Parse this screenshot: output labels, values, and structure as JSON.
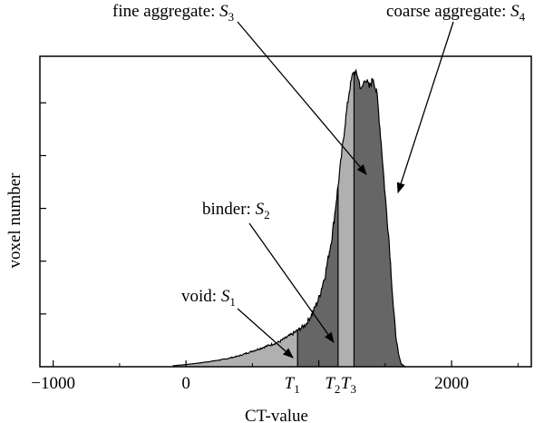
{
  "chart_data": {
    "type": "area",
    "xlabel": "CT-value",
    "ylabel": "voxel number",
    "xlim": [
      -1100,
      2600
    ],
    "ylim": [
      0,
      1.0
    ],
    "xticks": [
      -1000,
      0,
      1000,
      2000
    ],
    "xtick_labels": [
      "−1000",
      "0",
      "",
      "2000"
    ],
    "y_tick_count": 6,
    "y_tick_labels": false,
    "curve": {
      "x": [
        -100,
        0,
        100,
        200,
        300,
        400,
        500,
        600,
        700,
        800,
        900,
        950,
        1000,
        1050,
        1100,
        1150,
        1200,
        1230,
        1260,
        1290,
        1320,
        1350,
        1380,
        1410,
        1440,
        1470,
        1500,
        1530,
        1560,
        1580,
        1600,
        1620,
        1650
      ],
      "y": [
        0.003,
        0.007,
        0.012,
        0.018,
        0.025,
        0.035,
        0.05,
        0.065,
        0.08,
        0.105,
        0.135,
        0.17,
        0.22,
        0.3,
        0.42,
        0.6,
        0.79,
        0.89,
        0.95,
        0.94,
        0.89,
        0.93,
        0.9,
        0.93,
        0.87,
        0.72,
        0.55,
        0.4,
        0.2,
        0.1,
        0.04,
        0.01,
        0.0
      ]
    },
    "thresholds": [
      {
        "name": "T",
        "sub": "1",
        "x": 840
      },
      {
        "name": "T",
        "sub": "2",
        "x": 1145
      },
      {
        "name": "T",
        "sub": "3",
        "x": 1265
      }
    ],
    "regions": [
      {
        "name": "S1",
        "x_from": -100,
        "x_to": 840,
        "color": "#b0b0b0"
      },
      {
        "name": "S2",
        "x_from": 840,
        "x_to": 1145,
        "color": "#666666"
      },
      {
        "name": "S3",
        "x_from": 1145,
        "x_to": 1265,
        "color": "#b0b0b0"
      },
      {
        "name": "S4",
        "x_from": 1265,
        "x_to": 1650,
        "color": "#666666"
      }
    ],
    "annotations": [
      {
        "key": "void",
        "text": "void: ",
        "var": "S",
        "sub": "1",
        "target_region": "S1"
      },
      {
        "key": "binder",
        "text": "binder: ",
        "var": "S",
        "sub": "2",
        "target_region": "S2"
      },
      {
        "key": "fine",
        "text": "fine aggregate: ",
        "var": "S",
        "sub": "3",
        "target_region": "S3"
      },
      {
        "key": "coarse",
        "text": "coarse aggregate: ",
        "var": "S",
        "sub": "4",
        "target_region": "S4"
      }
    ],
    "grid": false,
    "legend": "none"
  }
}
